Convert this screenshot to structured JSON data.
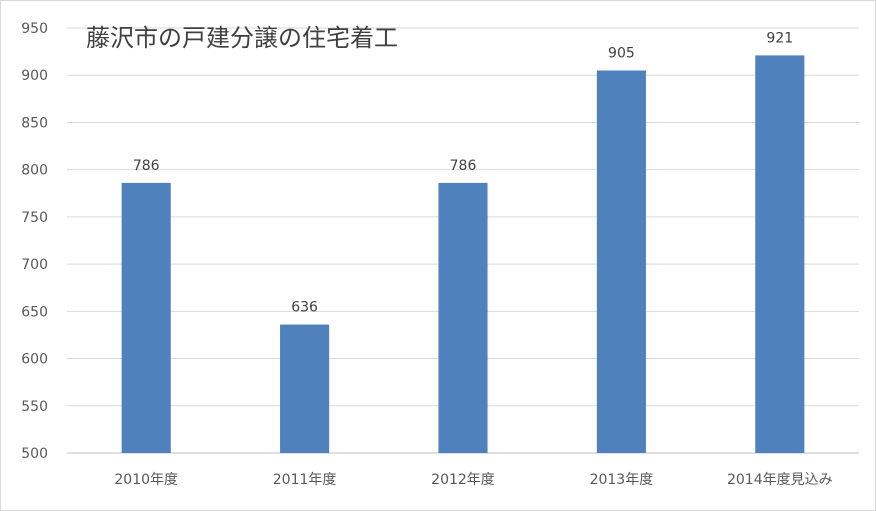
{
  "chart_data": {
    "type": "bar",
    "title": "藤沢市の戸建分譲の住宅着工",
    "categories": [
      "2010年度",
      "2011年度",
      "2012年度",
      "2013年度",
      "2014年度見込み"
    ],
    "values": [
      786,
      636,
      786,
      905,
      921
    ],
    "ylim": [
      500,
      950
    ],
    "yticks": [
      500,
      550,
      600,
      650,
      700,
      750,
      800,
      850,
      900,
      950
    ],
    "xlabel": "",
    "ylabel": "",
    "grid": true,
    "legend": "none",
    "data_labels": true,
    "bar_color": "#4f81bd",
    "grid_color": "#d9d9d9"
  }
}
